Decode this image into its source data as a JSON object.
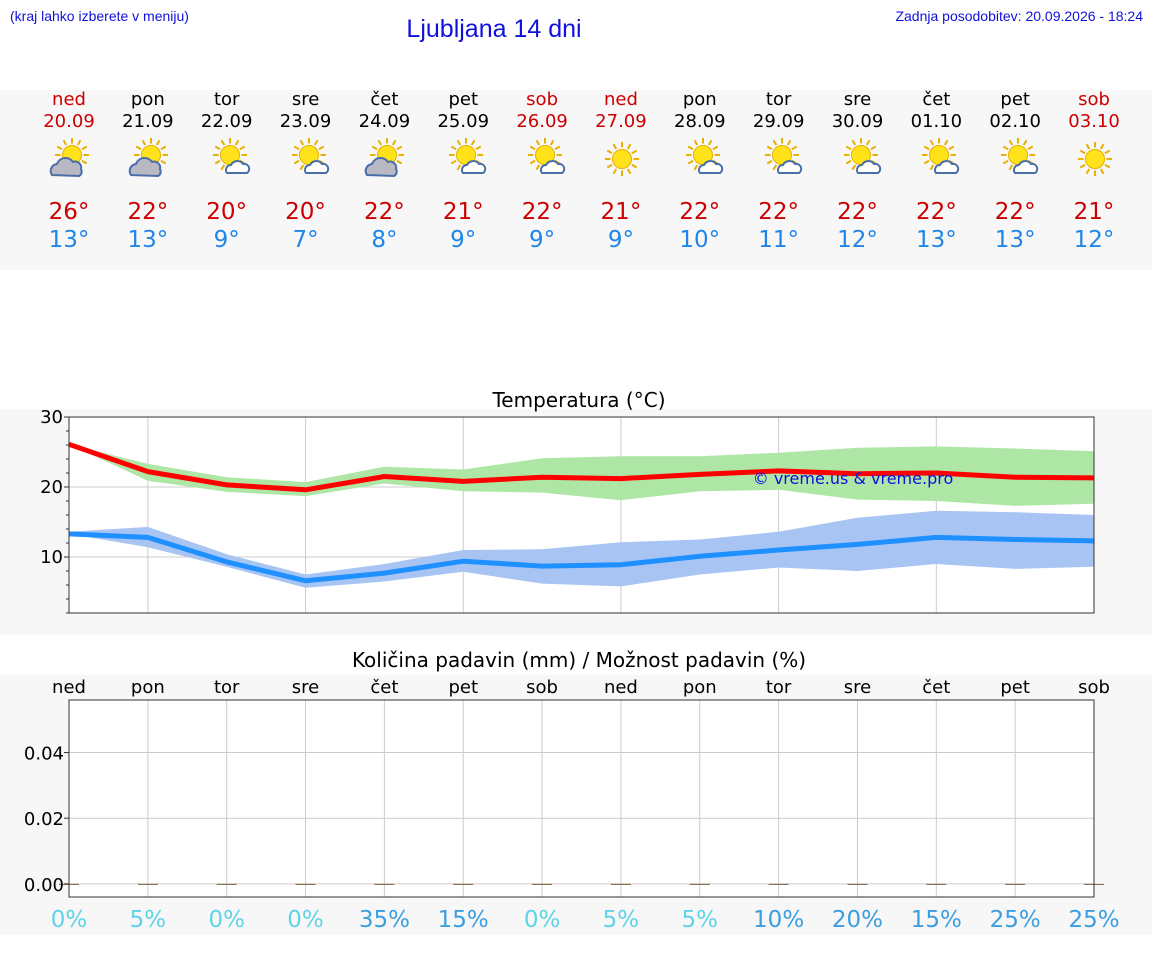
{
  "header": {
    "hint": "(kraj lahko izberete v meniju)",
    "title": "Ljubljana 14 dni",
    "updated": "Zadnja posodobitev: 20.09.2026 - 18:24"
  },
  "colors": {
    "weekend": "#cc0000",
    "weekday": "#000000",
    "tmax": "#cc0000",
    "tmin": "#1f86e8",
    "link": "#1010dd"
  },
  "days": [
    {
      "name": "ned",
      "date": "20.09",
      "weekend": true,
      "icon": "partly-cloudy-icon",
      "tmax": "26°",
      "tmin": "13°"
    },
    {
      "name": "pon",
      "date": "21.09",
      "weekend": false,
      "icon": "partly-cloudy-icon",
      "tmax": "22°",
      "tmin": "13°"
    },
    {
      "name": "tor",
      "date": "22.09",
      "weekend": false,
      "icon": "sun-small-cloud-icon",
      "tmax": "20°",
      "tmin": "9°"
    },
    {
      "name": "sre",
      "date": "23.09",
      "weekend": false,
      "icon": "sun-small-cloud-icon",
      "tmax": "20°",
      "tmin": "7°"
    },
    {
      "name": "čet",
      "date": "24.09",
      "weekend": false,
      "icon": "partly-cloudy-icon",
      "tmax": "22°",
      "tmin": "8°"
    },
    {
      "name": "pet",
      "date": "25.09",
      "weekend": false,
      "icon": "sun-small-cloud-icon",
      "tmax": "21°",
      "tmin": "9°"
    },
    {
      "name": "sob",
      "date": "26.09",
      "weekend": true,
      "icon": "sun-small-cloud-icon",
      "tmax": "22°",
      "tmin": "9°"
    },
    {
      "name": "ned",
      "date": "27.09",
      "weekend": true,
      "icon": "sun-icon",
      "tmax": "21°",
      "tmin": "9°"
    },
    {
      "name": "pon",
      "date": "28.09",
      "weekend": false,
      "icon": "sun-small-cloud-icon",
      "tmax": "22°",
      "tmin": "10°"
    },
    {
      "name": "tor",
      "date": "29.09",
      "weekend": false,
      "icon": "sun-small-cloud-icon",
      "tmax": "22°",
      "tmin": "11°"
    },
    {
      "name": "sre",
      "date": "30.09",
      "weekend": false,
      "icon": "sun-small-cloud-icon",
      "tmax": "22°",
      "tmin": "12°"
    },
    {
      "name": "čet",
      "date": "01.10",
      "weekend": false,
      "icon": "sun-small-cloud-icon",
      "tmax": "22°",
      "tmin": "13°"
    },
    {
      "name": "pet",
      "date": "02.10",
      "weekend": false,
      "icon": "sun-small-cloud-icon",
      "tmax": "22°",
      "tmin": "13°"
    },
    {
      "name": "sob",
      "date": "03.10",
      "weekend": true,
      "icon": "sun-icon",
      "tmax": "21°",
      "tmin": "12°"
    }
  ],
  "chart_data": [
    {
      "type": "line",
      "title": "Temperatura (°C)",
      "watermark": "© vreme.us & vreme.pro",
      "x": [
        0,
        1,
        2,
        3,
        4,
        5,
        6,
        7,
        8,
        9,
        10,
        11,
        12,
        13
      ],
      "ylim": [
        2,
        30
      ],
      "yticks": [
        10,
        20,
        30
      ],
      "grid": true,
      "series": [
        {
          "values": [
            26.1,
            22.2,
            20.3,
            19.6,
            21.5,
            20.8,
            21.4,
            21.2,
            21.8,
            22.3,
            21.9,
            22.0,
            21.4,
            21.3
          ],
          "color": "#ff0000",
          "band_low": [
            26.1,
            20.9,
            19.3,
            18.7,
            20.5,
            19.4,
            19.2,
            18.1,
            19.4,
            19.6,
            18.2,
            18.0,
            17.3,
            17.6
          ],
          "band_high": [
            26.1,
            23.3,
            21.4,
            20.7,
            22.9,
            22.5,
            24.1,
            24.4,
            24.4,
            24.9,
            25.6,
            25.8,
            25.5,
            25.1
          ],
          "band_color": "#aee6a6"
        },
        {
          "values": [
            13.3,
            12.8,
            9.3,
            6.6,
            7.7,
            9.4,
            8.7,
            8.9,
            10.1,
            11.0,
            11.8,
            12.8,
            12.5,
            12.3
          ],
          "color": "#1e90ff",
          "band_low": [
            13.3,
            11.4,
            8.6,
            5.6,
            6.5,
            7.9,
            6.2,
            5.8,
            7.5,
            8.5,
            8.0,
            9.0,
            8.3,
            8.6
          ],
          "band_high": [
            13.6,
            14.3,
            10.4,
            7.5,
            9.0,
            11.0,
            11.1,
            12.1,
            12.5,
            13.6,
            15.6,
            16.6,
            16.4,
            16.0
          ],
          "band_color": "#a8c4f2"
        }
      ]
    },
    {
      "type": "bar",
      "title": "Količina padavin (mm) / Možnost padavin (%)",
      "categories": [
        "ned",
        "pon",
        "tor",
        "sre",
        "čet",
        "pet",
        "sob",
        "ned",
        "pon",
        "tor",
        "sre",
        "čet",
        "pet",
        "sob"
      ],
      "values": [
        0,
        0,
        0,
        0,
        0,
        0,
        0,
        0,
        0,
        0,
        0,
        0,
        0,
        0
      ],
      "ylim": [
        -0.004,
        0.056
      ],
      "yticks": [
        0.0,
        0.02,
        0.04
      ],
      "yticklabels": [
        "0.00",
        "0.02",
        "0.04"
      ],
      "grid": true,
      "probability_pct": [
        "0%",
        "5%",
        "0%",
        "0%",
        "35%",
        "15%",
        "0%",
        "5%",
        "5%",
        "10%",
        "20%",
        "15%",
        "25%",
        "25%"
      ],
      "probability_colors": [
        "#5fd3e8",
        "#5fd3e8",
        "#5fd3e8",
        "#5fd3e8",
        "#3a9ee0",
        "#3a9ee0",
        "#5fd3e8",
        "#5fd3e8",
        "#5fd3e8",
        "#3a9ee0",
        "#3a9ee0",
        "#3a9ee0",
        "#3a9ee0",
        "#3a9ee0"
      ]
    }
  ]
}
